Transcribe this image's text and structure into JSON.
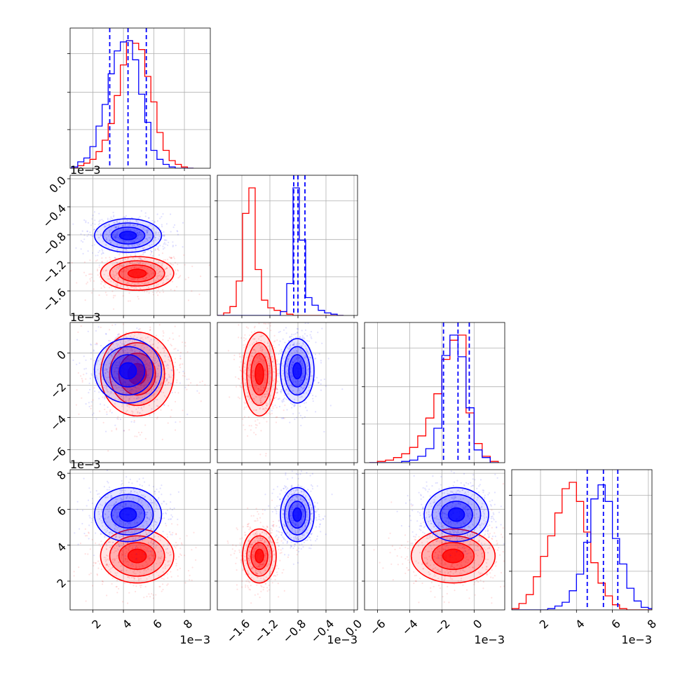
{
  "chart_data": {
    "type": "corner",
    "title": "",
    "parameters": [
      {
        "index": 0,
        "range": [
          0.0005,
          0.0097
        ],
        "ticks": [
          0.002,
          0.004,
          0.006,
          0.008
        ],
        "tick_labels": [
          "2",
          "4",
          "6",
          "8"
        ],
        "offset_text": "1e−3",
        "quantiles": [
          0.0031,
          0.0043,
          0.0055
        ]
      },
      {
        "index": 1,
        "range": [
          -0.00195,
          5e-05
        ],
        "ticks": [
          -0.0016,
          -0.0012,
          -0.0008,
          -0.0004,
          0.0
        ],
        "tick_labels": [
          "−1.6",
          "−1.2",
          "−0.8",
          "−0.4",
          "0.0"
        ],
        "offset_text": "1e−3",
        "quantiles": [
          -0.00086,
          -0.0008,
          -0.0007
        ]
      },
      {
        "index": 2,
        "range": [
          -0.0068,
          0.0019
        ],
        "ticks": [
          -0.006,
          -0.004,
          -0.002,
          0.0
        ],
        "tick_labels": [
          "−6",
          "−4",
          "−2",
          "0"
        ],
        "offset_text": "1e−3",
        "quantiles": [
          -0.0019,
          -0.001,
          -0.0003
        ]
      },
      {
        "index": 3,
        "range": [
          0.0004,
          0.0082
        ],
        "ticks": [
          0.002,
          0.004,
          0.006,
          0.008
        ],
        "tick_labels": [
          "2",
          "4",
          "6",
          "8"
        ],
        "offset_text": "1e−3",
        "quantiles": [
          0.0046,
          0.0055,
          0.0063
        ]
      }
    ],
    "series": [
      {
        "color": "#0000ff",
        "mean": [
          0.0043,
          -0.00081,
          -0.0011,
          0.0057
        ],
        "std": [
          0.0011,
          0.00012,
          0.001,
          0.00075
        ]
      },
      {
        "color": "#ff0000",
        "mean": [
          0.0049,
          -0.00135,
          -0.0013,
          0.0034
        ],
        "std": [
          0.0012,
          0.00012,
          0.0013,
          0.00075
        ]
      }
    ],
    "histograms": [
      {
        "param": 0,
        "bin_width": 0.0004,
        "bins_start": 0.0006,
        "blue": [
          0.01,
          0.05,
          0.08,
          0.17,
          0.33,
          0.5,
          0.74,
          0.92,
          0.99,
          1.0,
          0.85,
          0.58,
          0.36,
          0.14,
          0.07,
          0.03,
          0.01,
          0.0,
          0.0,
          0.0
        ],
        "red": [
          0.0,
          0.02,
          0.04,
          0.07,
          0.13,
          0.22,
          0.35,
          0.57,
          0.81,
          1.0,
          0.98,
          0.93,
          0.72,
          0.52,
          0.28,
          0.14,
          0.06,
          0.03,
          0.01,
          0.0
        ]
      },
      {
        "param": 1,
        "bin_width": 9e-05,
        "bins_start": -0.00195,
        "blue": [
          0,
          0,
          0,
          0,
          0,
          0,
          0,
          0,
          0,
          0,
          0.03,
          0.25,
          1.0,
          0.59,
          0.14,
          0.08,
          0.04,
          0.02,
          0.01,
          0.0
        ],
        "red": [
          0.0,
          0.02,
          0.07,
          0.27,
          0.8,
          1.0,
          0.36,
          0.12,
          0.06,
          0.04,
          0.03,
          0.01,
          0.0,
          0.0,
          0.0,
          0.0,
          0,
          0,
          0,
          0
        ]
      },
      {
        "param": 2,
        "bin_width": 0.0005,
        "bins_start": -0.0065,
        "blue": [
          0,
          0,
          0,
          0,
          0.01,
          0.02,
          0.05,
          0.11,
          0.27,
          0.84,
          1.0,
          0.83,
          0.43,
          0.1,
          0.04,
          0.0
        ],
        "red": [
          0.0,
          0.01,
          0.02,
          0.04,
          0.07,
          0.12,
          0.21,
          0.35,
          0.54,
          0.81,
          0.96,
          1.0,
          0.39,
          0.15,
          0.05,
          0.01
        ]
      },
      {
        "param": 3,
        "bin_width": 0.0004,
        "bins_start": 0.0004,
        "blue": [
          0,
          0,
          0,
          0,
          0,
          0.01,
          0.03,
          0.06,
          0.15,
          0.28,
          0.53,
          0.87,
          0.98,
          0.85,
          0.56,
          0.36,
          0.17,
          0.07,
          0.02,
          0.01
        ],
        "red": [
          0.01,
          0.05,
          0.12,
          0.26,
          0.42,
          0.58,
          0.76,
          0.95,
          1.0,
          0.85,
          0.61,
          0.37,
          0.21,
          0.11,
          0.04,
          0.01,
          0,
          0,
          0,
          0
        ]
      }
    ],
    "grid": true,
    "legend": "none"
  }
}
